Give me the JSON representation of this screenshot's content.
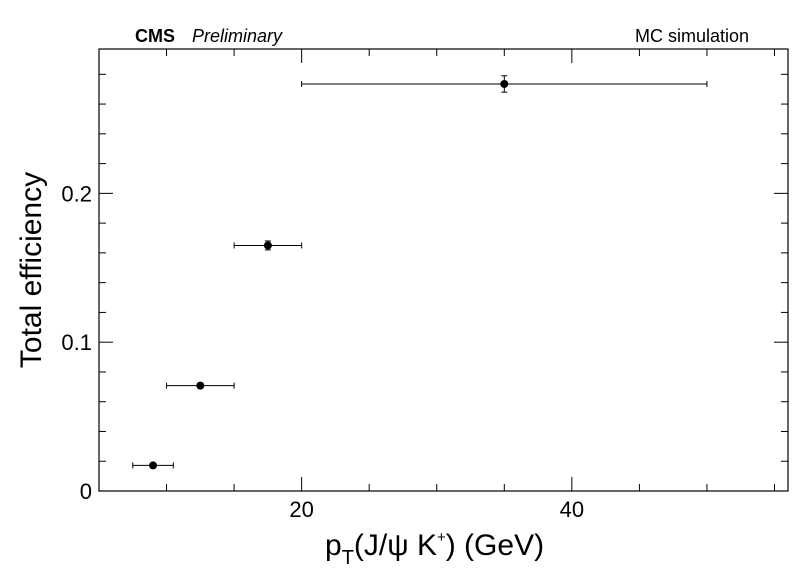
{
  "header": {
    "experiment": "CMS",
    "status": "Preliminary",
    "note": "MC simulation"
  },
  "chart_data": {
    "type": "scatter",
    "title": "",
    "xlabel": {
      "main": "p",
      "subscript": "T",
      "paren_open": "(J/ψ K",
      "superscript": "+",
      "paren_close": ") (GeV)"
    },
    "ylabel": "Total efficiency",
    "xlim": [
      5,
      56
    ],
    "ylim": [
      0,
      0.297
    ],
    "x_ticks": [
      20,
      40
    ],
    "x_tick_labels": [
      "20",
      "40"
    ],
    "y_ticks": [
      0,
      0.1,
      0.2
    ],
    "y_tick_labels": [
      "0",
      "0.1",
      "0.2"
    ],
    "grid": false,
    "points": [
      {
        "x": 9,
        "x_err": [
          1.5,
          1.5
        ],
        "y": 0.0172,
        "y_err": 0.0008
      },
      {
        "x": 12.5,
        "x_err": [
          2.5,
          2.5
        ],
        "y": 0.0708,
        "y_err": 0.0015
      },
      {
        "x": 17.5,
        "x_err": [
          2.5,
          2.5
        ],
        "y": 0.165,
        "y_err": 0.003
      },
      {
        "x": 35,
        "x_err": [
          15,
          15
        ],
        "y": 0.2735,
        "y_err": 0.0055
      }
    ]
  }
}
